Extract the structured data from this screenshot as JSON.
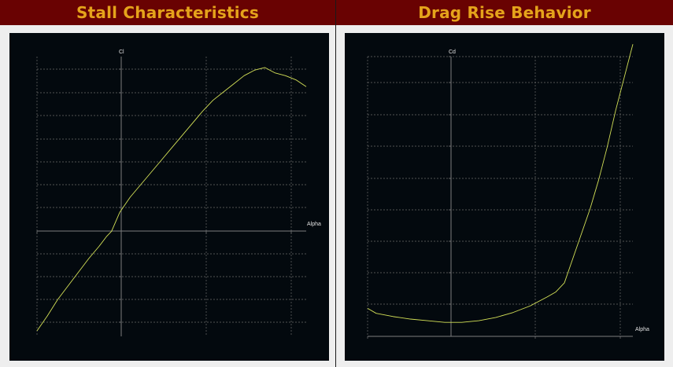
{
  "headers": {
    "left": "Stall Characteristics",
    "right": "Drag Rise Behavior"
  },
  "colors": {
    "header_bg": "#690202",
    "header_text": "#e5a31b",
    "plot_bg": "#03090e",
    "curve": "#d4e157",
    "grid": "#6b6b6b",
    "axis": "#7d7d7d",
    "label": "#e0e0e0"
  },
  "chart_data": [
    {
      "type": "line",
      "title": "Stall Characteristics",
      "xlabel": "Alpha",
      "ylabel": "Cl",
      "xlim": [
        -5,
        21
      ],
      "ylim": [
        -0.55,
        1.5
      ],
      "grid": true,
      "series": [
        {
          "x": [
            -5,
            -4,
            -3,
            -2,
            -1,
            0,
            1,
            1.7,
            2.2,
            3,
            4,
            5,
            6,
            7,
            8,
            9,
            10,
            11,
            12,
            13,
            14,
            15,
            16,
            17,
            18,
            19,
            20,
            21
          ],
          "values": [
            -0.51,
            -0.4,
            -0.28,
            -0.18,
            -0.08,
            0.02,
            0.11,
            0.18,
            0.22,
            0.36,
            0.47,
            0.56,
            0.65,
            0.74,
            0.83,
            0.92,
            1.01,
            1.1,
            1.18,
            1.24,
            1.3,
            1.36,
            1.4,
            1.42,
            1.38,
            1.36,
            1.33,
            1.28
          ]
        }
      ]
    },
    {
      "type": "line",
      "title": "Drag Rise Behavior",
      "xlabel": "Alpha",
      "ylabel": "Cd",
      "xlim": [
        -10,
        21
      ],
      "ylim": [
        -0.01,
        0.33
      ],
      "grid": true,
      "series": [
        {
          "x": [
            -10,
            -9,
            -7,
            -5,
            -3,
            -1,
            0,
            1,
            3,
            5,
            7,
            9,
            11,
            12,
            13,
            14,
            15,
            16,
            17,
            18,
            19,
            20,
            21
          ],
          "values": [
            0.024,
            0.018,
            0.014,
            0.011,
            0.009,
            0.007,
            0.007,
            0.007,
            0.009,
            0.013,
            0.019,
            0.027,
            0.038,
            0.044,
            0.055,
            0.085,
            0.115,
            0.145,
            0.18,
            0.22,
            0.265,
            0.305,
            0.345
          ]
        }
      ]
    }
  ]
}
